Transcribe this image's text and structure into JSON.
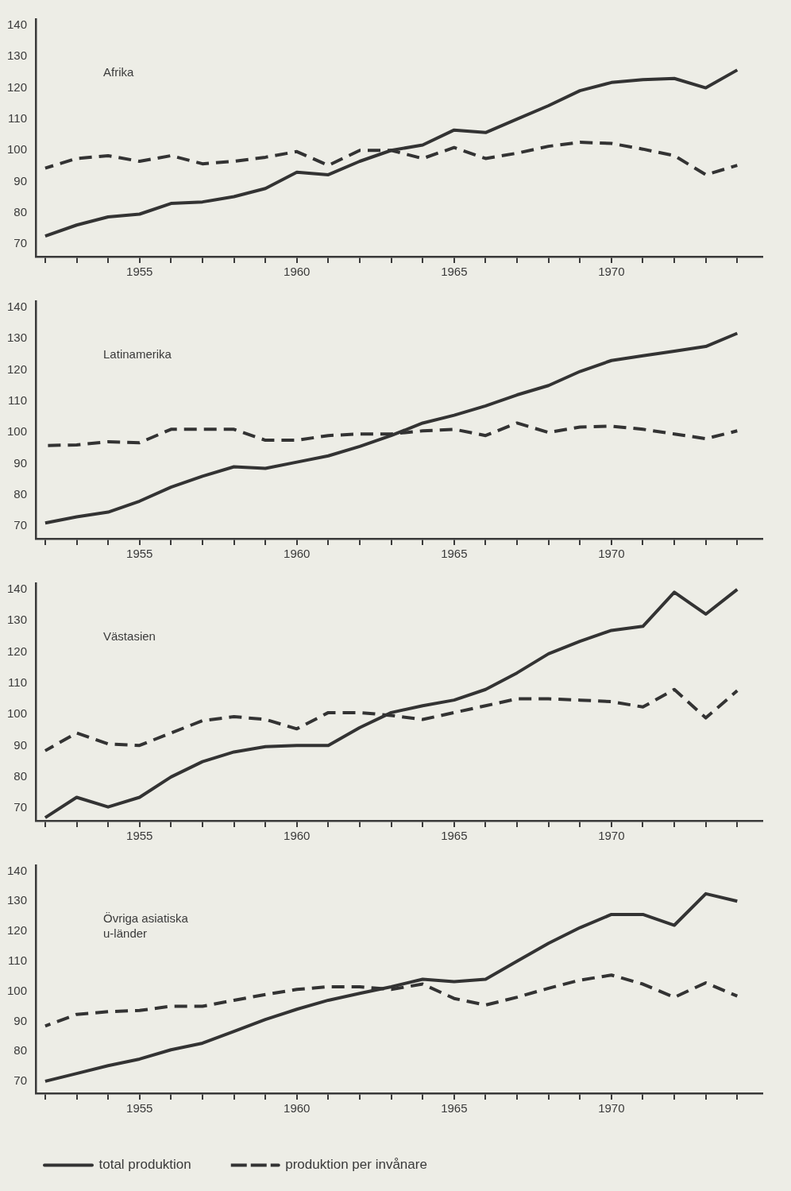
{
  "chart_data": [
    {
      "type": "line",
      "title": "Afrika",
      "x": [
        1952,
        1953,
        1954,
        1955,
        1956,
        1957,
        1958,
        1959,
        1960,
        1961,
        1962,
        1963,
        1964,
        1965,
        1966,
        1967,
        1968,
        1969,
        1970,
        1971,
        1972,
        1973,
        1974
      ],
      "xlim": [
        1951.7,
        1974.8
      ],
      "xticks": [
        {
          "value": 1952,
          "label": null
        },
        {
          "value": 1953,
          "label": null
        },
        {
          "value": 1954,
          "label": null
        },
        1955,
        {
          "value": 1956,
          "label": null
        },
        {
          "value": 1957,
          "label": null
        },
        {
          "value": 1958,
          "label": null
        },
        {
          "value": 1959,
          "label": null
        },
        1960,
        {
          "value": 1961,
          "label": null
        },
        {
          "value": 1962,
          "label": null
        },
        {
          "value": 1963,
          "label": null
        },
        {
          "value": 1964,
          "label": null
        },
        1965,
        {
          "value": 1966,
          "label": null
        },
        {
          "value": 1967,
          "label": null
        },
        {
          "value": 1968,
          "label": null
        },
        {
          "value": 1969,
          "label": null
        },
        1970,
        {
          "value": 1971,
          "label": null
        },
        {
          "value": 1972,
          "label": null
        },
        {
          "value": 1973,
          "label": null
        },
        {
          "value": 1974,
          "label": null
        }
      ],
      "ylim": [
        66,
        142
      ],
      "yticks": [
        70,
        80,
        90,
        100,
        110,
        120,
        130,
        140
      ],
      "marker": "none",
      "legend": false,
      "series": [
        {
          "color": "#333333",
          "line_style": "solid",
          "values": [
            72.6,
            76.1,
            78.7,
            79.6,
            83,
            83.5,
            85.2,
            87.8,
            93,
            92.2,
            96.5,
            100,
            101.7,
            106.5,
            105.7,
            110,
            114.3,
            119.1,
            121.7,
            122.6,
            123,
            120,
            125.7
          ]
        },
        {
          "color": "#333333",
          "line_style": "dashed",
          "values": [
            94.3,
            97.4,
            98.3,
            96.5,
            98.3,
            95.7,
            96.5,
            97.8,
            99.6,
            95.2,
            100,
            100,
            97.4,
            100.9,
            97.4,
            99.1,
            101.3,
            102.6,
            102.2,
            100.4,
            98.3,
            92.2,
            95.2
          ]
        }
      ]
    },
    {
      "type": "line",
      "title": "Latinamerika",
      "x": [
        1952,
        1953,
        1954,
        1955,
        1956,
        1957,
        1958,
        1959,
        1960,
        1961,
        1962,
        1963,
        1964,
        1965,
        1966,
        1967,
        1968,
        1969,
        1970,
        1971,
        1972,
        1973,
        1974
      ],
      "xlim": [
        1951.7,
        1974.8
      ],
      "xticks": [
        {
          "value": 1952,
          "label": null
        },
        {
          "value": 1953,
          "label": null
        },
        {
          "value": 1954,
          "label": null
        },
        1955,
        {
          "value": 1956,
          "label": null
        },
        {
          "value": 1957,
          "label": null
        },
        {
          "value": 1958,
          "label": null
        },
        {
          "value": 1959,
          "label": null
        },
        1960,
        {
          "value": 1961,
          "label": null
        },
        {
          "value": 1962,
          "label": null
        },
        {
          "value": 1963,
          "label": null
        },
        {
          "value": 1964,
          "label": null
        },
        1965,
        {
          "value": 1966,
          "label": null
        },
        {
          "value": 1967,
          "label": null
        },
        {
          "value": 1968,
          "label": null
        },
        {
          "value": 1969,
          "label": null
        },
        1970,
        {
          "value": 1971,
          "label": null
        },
        {
          "value": 1972,
          "label": null
        },
        {
          "value": 1973,
          "label": null
        },
        {
          "value": 1974,
          "label": null
        }
      ],
      "ylim": [
        66,
        142
      ],
      "yticks": [
        70,
        80,
        90,
        100,
        110,
        120,
        130,
        140
      ],
      "marker": "none",
      "legend": false,
      "series": [
        {
          "color": "#333333",
          "line_style": "solid",
          "values": [
            71,
            73,
            74.5,
            78,
            82.5,
            86,
            89,
            88.5,
            90.5,
            92.5,
            95.5,
            99,
            103,
            105.5,
            108.5,
            112,
            115,
            119.5,
            123,
            124.5,
            126,
            127.5,
            131.7
          ]
        },
        {
          "color": "#333333",
          "line_style": "dashed",
          "values": [
            95.8,
            96,
            97,
            96.7,
            101,
            101,
            101,
            97.5,
            97.5,
            99,
            99.5,
            99.5,
            100.5,
            101,
            99,
            103,
            100,
            101.7,
            102,
            101,
            99.5,
            98,
            100.5
          ]
        }
      ]
    },
    {
      "type": "line",
      "title": "Västasien",
      "x": [
        1952,
        1953,
        1954,
        1955,
        1956,
        1957,
        1958,
        1959,
        1960,
        1961,
        1962,
        1963,
        1964,
        1965,
        1966,
        1967,
        1968,
        1969,
        1970,
        1971,
        1972,
        1973,
        1974
      ],
      "xlim": [
        1951.7,
        1974.8
      ],
      "xticks": [
        {
          "value": 1952,
          "label": null
        },
        {
          "value": 1953,
          "label": null
        },
        {
          "value": 1954,
          "label": null
        },
        1955,
        {
          "value": 1956,
          "label": null
        },
        {
          "value": 1957,
          "label": null
        },
        {
          "value": 1958,
          "label": null
        },
        {
          "value": 1959,
          "label": null
        },
        1960,
        {
          "value": 1961,
          "label": null
        },
        {
          "value": 1962,
          "label": null
        },
        {
          "value": 1963,
          "label": null
        },
        {
          "value": 1964,
          "label": null
        },
        1965,
        {
          "value": 1966,
          "label": null
        },
        {
          "value": 1967,
          "label": null
        },
        {
          "value": 1968,
          "label": null
        },
        {
          "value": 1969,
          "label": null
        },
        1970,
        {
          "value": 1971,
          "label": null
        },
        {
          "value": 1972,
          "label": null
        },
        {
          "value": 1973,
          "label": null
        },
        {
          "value": 1974,
          "label": null
        }
      ],
      "ylim": [
        66,
        142
      ],
      "yticks": [
        70,
        80,
        90,
        100,
        110,
        120,
        130,
        140
      ],
      "marker": "none",
      "legend": false,
      "series": [
        {
          "color": "#333333",
          "line_style": "solid",
          "values": [
            67,
            73.5,
            70.4,
            73.5,
            80,
            84.9,
            88,
            89.7,
            90.1,
            90.1,
            95.8,
            100.6,
            102.8,
            104.6,
            108,
            113.3,
            119.4,
            123.4,
            126.9,
            128.2,
            139.1,
            132.1,
            140
          ]
        },
        {
          "color": "#333333",
          "line_style": "dashed",
          "values": [
            88.4,
            94.1,
            90.6,
            90.1,
            94.1,
            98,
            99.3,
            98.4,
            95.4,
            100.6,
            100.6,
            99.7,
            98.4,
            100.6,
            102.8,
            105,
            105,
            104.6,
            104.1,
            102.4,
            108,
            98.9,
            107.6
          ]
        }
      ]
    },
    {
      "type": "line",
      "title": "Övriga asiatiska\nu-länder",
      "x": [
        1952,
        1953,
        1954,
        1955,
        1956,
        1957,
        1958,
        1959,
        1960,
        1961,
        1962,
        1963,
        1964,
        1965,
        1966,
        1967,
        1968,
        1969,
        1970,
        1971,
        1972,
        1973,
        1974
      ],
      "xlim": [
        1951.7,
        1974.8
      ],
      "xticks": [
        {
          "value": 1952,
          "label": null
        },
        {
          "value": 1953,
          "label": null
        },
        {
          "value": 1954,
          "label": null
        },
        1955,
        {
          "value": 1956,
          "label": null
        },
        {
          "value": 1957,
          "label": null
        },
        {
          "value": 1958,
          "label": null
        },
        {
          "value": 1959,
          "label": null
        },
        1960,
        {
          "value": 1961,
          "label": null
        },
        {
          "value": 1962,
          "label": null
        },
        {
          "value": 1963,
          "label": null
        },
        {
          "value": 1964,
          "label": null
        },
        1965,
        {
          "value": 1966,
          "label": null
        },
        {
          "value": 1967,
          "label": null
        },
        {
          "value": 1968,
          "label": null
        },
        {
          "value": 1969,
          "label": null
        },
        1970,
        {
          "value": 1971,
          "label": null
        },
        {
          "value": 1972,
          "label": null
        },
        {
          "value": 1973,
          "label": null
        },
        {
          "value": 1974,
          "label": null
        }
      ],
      "ylim": [
        66,
        142
      ],
      "yticks": [
        70,
        80,
        90,
        100,
        110,
        120,
        130,
        140
      ],
      "marker": "none",
      "legend": "bottom",
      "series": [
        {
          "name": "total produktion",
          "color": "#333333",
          "line_style": "solid",
          "values": [
            70,
            72.6,
            75.2,
            77.4,
            80.5,
            82.7,
            86.6,
            90.6,
            94,
            97,
            99.3,
            101.5,
            104,
            103.2,
            104,
            110,
            116,
            121.2,
            125.6,
            125.6,
            122,
            132.5,
            130
          ]
        },
        {
          "name": "produktion per invånare",
          "color": "#333333",
          "line_style": "dashed",
          "values": [
            88.4,
            92.3,
            93.2,
            93.6,
            95,
            95,
            97,
            98.9,
            100.6,
            101.5,
            101.5,
            100.6,
            102.4,
            97.6,
            95.4,
            98,
            101,
            103.7,
            105.4,
            102.4,
            98,
            102.8,
            98.4
          ]
        }
      ]
    }
  ]
}
